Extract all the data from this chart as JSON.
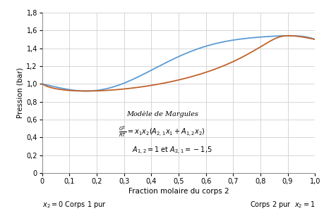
{
  "xlabel": "Fraction molaire du corps 2",
  "ylabel": "Pression (bar)",
  "xlim": [
    0,
    1
  ],
  "ylim": [
    0,
    1.8
  ],
  "yticks": [
    0,
    0.2,
    0.4,
    0.6,
    0.8,
    1.0,
    1.2,
    1.4,
    1.6,
    1.8
  ],
  "xticks": [
    0,
    0.1,
    0.2,
    0.3,
    0.4,
    0.5,
    0.6,
    0.7,
    0.8,
    0.9,
    1.0
  ],
  "P1sat": 1.0,
  "P2sat": 1.5,
  "A12": 1.0,
  "A21": -1.5,
  "color_blue": "#5b9bd5",
  "color_orange": "#c0622a",
  "label_left": "$x_2 = 0$ Corps 1 pur",
  "label_right": "Corps 2 pur  $x_2 = 1$",
  "annotation_title": "Modèle de Margules",
  "background_color": "#ffffff",
  "grid_color": "#d0d0d0"
}
